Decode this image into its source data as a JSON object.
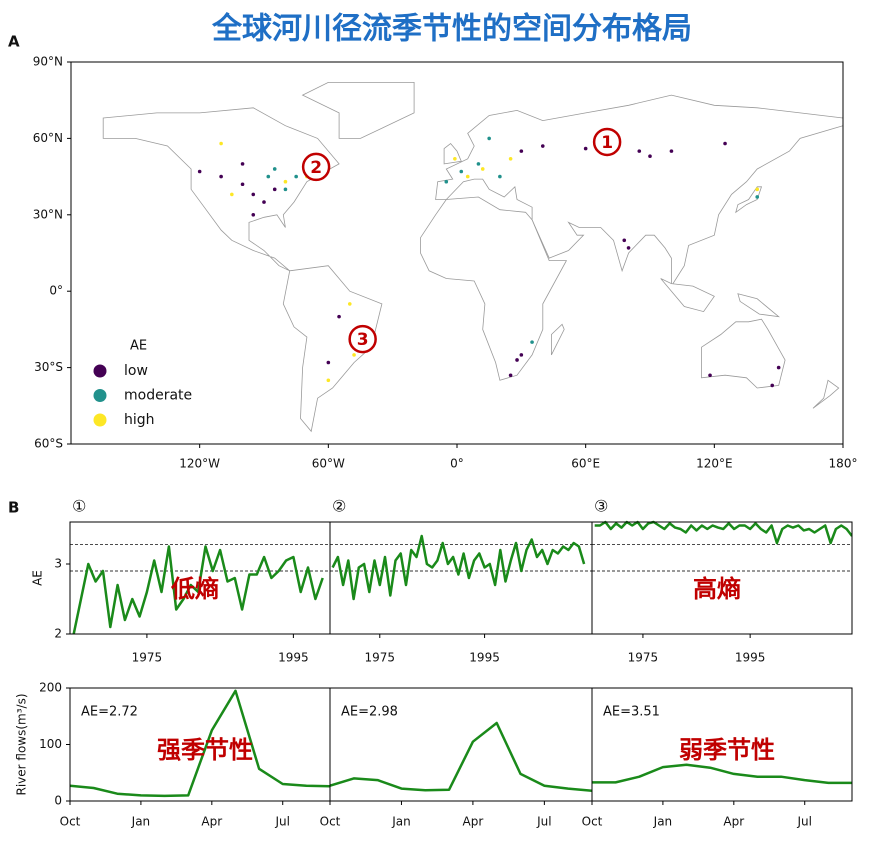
{
  "title": "全球河川径流季节性的空间分布格局",
  "chart_data": [
    {
      "type": "scatter",
      "panel": "A",
      "xlim": [
        -180,
        180
      ],
      "ylim": [
        -60,
        90
      ],
      "xticks": [
        {
          "value": -120,
          "label": "120°W"
        },
        {
          "value": -60,
          "label": "60°W"
        },
        {
          "value": 0,
          "label": "0°"
        },
        {
          "value": 60,
          "label": "60°E"
        },
        {
          "value": 120,
          "label": "120°E"
        },
        {
          "value": 180,
          "label": "180°"
        }
      ],
      "yticks": [
        {
          "value": -60,
          "label": "60°S"
        },
        {
          "value": -30,
          "label": "30°S"
        },
        {
          "value": 0,
          "label": "0°"
        },
        {
          "value": 30,
          "label": "30°N"
        },
        {
          "value": 60,
          "label": "60°N"
        },
        {
          "value": 90,
          "label": "90°N"
        }
      ],
      "legend_title": "AE",
      "legend": "lower left",
      "markers": [
        "1",
        "2",
        "3"
      ],
      "series": [
        {
          "name": "low",
          "color": "#440154",
          "x": [
            -95,
            -100,
            -90,
            -85,
            -110,
            -120,
            -100,
            -95,
            30,
            40,
            85,
            90,
            100,
            125,
            60,
            28,
            25,
            30,
            -55,
            -60,
            150,
            147,
            118,
            78,
            80
          ],
          "values": [
            38,
            42,
            35,
            40,
            45,
            47,
            50,
            30,
            55,
            57,
            55,
            53,
            55,
            58,
            56,
            -27,
            -33,
            -25,
            -10,
            -28,
            -30,
            -37,
            -33,
            20,
            17
          ]
        },
        {
          "name": "moderate",
          "color": "#21918c",
          "x": [
            -80,
            -75,
            -88,
            -5,
            2,
            10,
            20,
            140,
            -45,
            35,
            -85,
            15
          ],
          "values": [
            40,
            45,
            45,
            43,
            47,
            50,
            45,
            37,
            -20,
            -20,
            48,
            60
          ]
        },
        {
          "name": "high",
          "color": "#fde725",
          "x": [
            -60,
            -70,
            -80,
            -110,
            5,
            12,
            -1,
            25,
            -48,
            -60,
            -50,
            -105,
            140
          ],
          "values": [
            48,
            45,
            43,
            58,
            45,
            48,
            52,
            52,
            -25,
            -35,
            -5,
            38,
            40
          ]
        }
      ]
    },
    {
      "type": "line",
      "panel": "B",
      "header": "①",
      "ylabel": "AE",
      "annotation": "低熵",
      "color": "#1a8a1a",
      "xlim": [
        1964.5,
        2000
      ],
      "ylim": [
        2,
        3.6
      ],
      "xticks": [
        1975,
        1995
      ],
      "yticks": [
        2,
        3
      ],
      "reference_lines": [
        3.28,
        2.9
      ],
      "x": [
        1965,
        1966,
        1967,
        1968,
        1969,
        1970,
        1971,
        1972,
        1973,
        1974,
        1975,
        1976,
        1977,
        1978,
        1979,
        1980,
        1981,
        1982,
        1983,
        1984,
        1985,
        1986,
        1987,
        1988,
        1989,
        1990,
        1991,
        1992,
        1993,
        1994,
        1995,
        1996,
        1997,
        1998,
        1999
      ],
      "values": [
        2.0,
        2.5,
        3.0,
        2.75,
        2.9,
        2.1,
        2.7,
        2.2,
        2.5,
        2.25,
        2.6,
        3.05,
        2.6,
        3.25,
        2.35,
        2.5,
        2.7,
        2.6,
        3.25,
        2.9,
        3.2,
        2.75,
        2.8,
        2.35,
        2.85,
        2.85,
        3.1,
        2.8,
        2.9,
        3.05,
        3.1,
        2.6,
        2.95,
        2.5,
        2.8
      ]
    },
    {
      "type": "line",
      "header": "②",
      "color": "#1a8a1a",
      "xlim": [
        1965.5,
        2015.5
      ],
      "ylim": [
        2,
        3.6
      ],
      "xticks": [
        1975,
        1995
      ],
      "reference_lines": [
        3.28,
        2.9
      ],
      "x": [
        1966,
        1967,
        1968,
        1969,
        1970,
        1971,
        1972,
        1973,
        1974,
        1975,
        1976,
        1977,
        1978,
        1979,
        1980,
        1981,
        1982,
        1983,
        1984,
        1985,
        1986,
        1987,
        1988,
        1989,
        1990,
        1991,
        1992,
        1993,
        1994,
        1995,
        1996,
        1997,
        1998,
        1999,
        2000,
        2001,
        2002,
        2003,
        2004,
        2005,
        2006,
        2007,
        2008,
        2009,
        2010,
        2011,
        2012,
        2013,
        2014
      ],
      "values": [
        2.95,
        3.1,
        2.7,
        3.05,
        2.5,
        2.95,
        3.0,
        2.6,
        3.05,
        2.7,
        3.1,
        2.55,
        3.05,
        3.15,
        2.7,
        3.2,
        3.1,
        3.4,
        3.0,
        2.95,
        3.05,
        3.3,
        3.0,
        3.1,
        2.85,
        3.15,
        2.8,
        3.05,
        3.15,
        2.95,
        3.0,
        2.7,
        3.2,
        2.75,
        3.05,
        3.3,
        2.9,
        3.2,
        3.35,
        3.1,
        3.2,
        3.0,
        3.2,
        3.15,
        3.25,
        3.2,
        3.3,
        3.25,
        3.0
      ]
    },
    {
      "type": "line",
      "header": "③",
      "annotation": "高熵",
      "color": "#1a8a1a",
      "xlim": [
        1965.5,
        2014
      ],
      "ylim": [
        2,
        3.6
      ],
      "xticks": [
        1975,
        1995
      ],
      "reference_lines": [
        3.28,
        2.9
      ],
      "x": [
        1966,
        1967,
        1968,
        1969,
        1970,
        1971,
        1972,
        1973,
        1974,
        1975,
        1976,
        1977,
        1978,
        1979,
        1980,
        1981,
        1982,
        1983,
        1984,
        1985,
        1986,
        1987,
        1988,
        1989,
        1990,
        1991,
        1992,
        1993,
        1994,
        1995,
        1996,
        1997,
        1998,
        1999,
        2000,
        2001,
        2002,
        2003,
        2004,
        2005,
        2006,
        2007,
        2008,
        2009,
        2010,
        2011,
        2012,
        2013,
        2014
      ],
      "values": [
        3.55,
        3.55,
        3.6,
        3.5,
        3.58,
        3.52,
        3.6,
        3.55,
        3.6,
        3.5,
        3.58,
        3.6,
        3.55,
        3.5,
        3.58,
        3.52,
        3.5,
        3.45,
        3.55,
        3.48,
        3.55,
        3.5,
        3.55,
        3.52,
        3.5,
        3.58,
        3.5,
        3.55,
        3.55,
        3.5,
        3.58,
        3.5,
        3.45,
        3.55,
        3.3,
        3.5,
        3.55,
        3.52,
        3.55,
        3.48,
        3.5,
        3.45,
        3.5,
        3.55,
        3.3,
        3.5,
        3.55,
        3.5,
        3.4
      ]
    },
    {
      "type": "line",
      "ylabel": "River flows(m³/s)",
      "ae_label": "AE=2.72",
      "annotation": "强季节性",
      "color": "#1a8a1a",
      "ylim": [
        0,
        200
      ],
      "yticks": [
        0,
        100,
        200
      ],
      "categories": [
        "Oct",
        null,
        null,
        "Jan",
        null,
        null,
        "Apr",
        null,
        null,
        "Jul",
        null,
        null
      ],
      "values": [
        27,
        23,
        13,
        10,
        9,
        10,
        125,
        195,
        57,
        30,
        27,
        26
      ]
    },
    {
      "type": "line",
      "ae_label": "AE=2.98",
      "color": "#1a8a1a",
      "ylim": [
        0,
        200
      ],
      "categories": [
        "Oct",
        null,
        null,
        "Jan",
        null,
        null,
        "Apr",
        null,
        null,
        "Jul",
        null,
        null
      ],
      "values": [
        27,
        40,
        37,
        22,
        19,
        20,
        105,
        138,
        48,
        27,
        22,
        18
      ]
    },
    {
      "type": "line",
      "ae_label": "AE=3.51",
      "annotation": "弱季节性",
      "color": "#1a8a1a",
      "ylim": [
        0,
        200
      ],
      "categories": [
        "Oct",
        null,
        null,
        "Jan",
        null,
        null,
        "Apr",
        null,
        null,
        "Jul",
        null,
        null
      ],
      "values": [
        33,
        33,
        43,
        60,
        64,
        59,
        48,
        43,
        43,
        37,
        32,
        32
      ]
    }
  ]
}
